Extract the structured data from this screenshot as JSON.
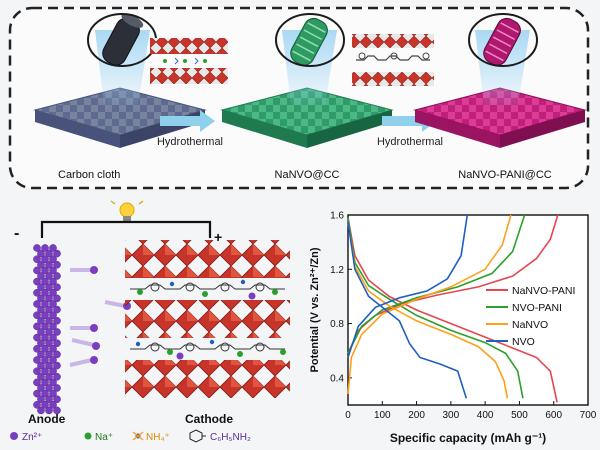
{
  "synthesis": {
    "step1_label": "Hydrothermal",
    "step2_label": "Hydrothermal",
    "stage1_caption": "Carbon cloth",
    "stage2_caption": "NaNVO@CC",
    "stage3_caption": "NaNVO-PANI@CC",
    "colors": {
      "cloth1": "#5e6a8f",
      "cloth2": "#2f9a6a",
      "cloth3": "#c01f7a",
      "octahedra": "#c8342a",
      "arrow": "#8fd0ec"
    }
  },
  "battery": {
    "minus": "-",
    "plus": "+",
    "anode_label": "Anode",
    "cathode_label": "Cathode",
    "legend": [
      {
        "text": "Zn²⁺",
        "icon": "purple-dot-icon"
      },
      {
        "text": "Na⁺",
        "icon": "green-dot-icon"
      },
      {
        "text": "NH₄⁺",
        "icon": "ammonium-icon"
      },
      {
        "text": "C₆H₅NH₂",
        "icon": "aniline-icon"
      }
    ]
  },
  "chart_data": {
    "type": "line",
    "xlabel": "Specific capacity (mAh g⁻¹)",
    "ylabel": "Potential (V vs. Zn²⁺/Zn)",
    "xlim": [
      0,
      700
    ],
    "ylim": [
      0.2,
      1.6
    ],
    "xticks": [
      0,
      100,
      200,
      300,
      400,
      500,
      600,
      700
    ],
    "yticks": [
      0.4,
      0.8,
      1.2,
      1.6
    ],
    "legend_position": "right",
    "series": [
      {
        "name": "NaNVO-PANI",
        "color": "#e8464e",
        "discharge": [
          [
            0,
            1.58
          ],
          [
            20,
            1.3
          ],
          [
            60,
            1.12
          ],
          [
            120,
            1.0
          ],
          [
            200,
            0.9
          ],
          [
            300,
            0.8
          ],
          [
            400,
            0.7
          ],
          [
            480,
            0.62
          ],
          [
            550,
            0.55
          ],
          [
            590,
            0.45
          ],
          [
            610,
            0.22
          ]
        ],
        "charge": [
          [
            0,
            0.58
          ],
          [
            30,
            0.75
          ],
          [
            80,
            0.86
          ],
          [
            160,
            0.95
          ],
          [
            260,
            1.01
          ],
          [
            380,
            1.07
          ],
          [
            480,
            1.15
          ],
          [
            550,
            1.28
          ],
          [
            590,
            1.42
          ],
          [
            612,
            1.6
          ]
        ]
      },
      {
        "name": "NVO-PANI",
        "color": "#2ca02c",
        "discharge": [
          [
            0,
            1.58
          ],
          [
            20,
            1.25
          ],
          [
            60,
            1.08
          ],
          [
            120,
            0.98
          ],
          [
            200,
            0.86
          ],
          [
            300,
            0.75
          ],
          [
            400,
            0.66
          ],
          [
            460,
            0.58
          ],
          [
            495,
            0.45
          ],
          [
            510,
            0.25
          ]
        ],
        "charge": [
          [
            0,
            0.58
          ],
          [
            40,
            0.78
          ],
          [
            100,
            0.9
          ],
          [
            200,
            0.99
          ],
          [
            320,
            1.07
          ],
          [
            420,
            1.17
          ],
          [
            480,
            1.33
          ],
          [
            515,
            1.6
          ]
        ]
      },
      {
        "name": "NaNVO",
        "color": "#ff9f1c",
        "discharge": [
          [
            0,
            1.55
          ],
          [
            20,
            1.22
          ],
          [
            60,
            1.04
          ],
          [
            120,
            0.93
          ],
          [
            200,
            0.82
          ],
          [
            300,
            0.72
          ],
          [
            380,
            0.63
          ],
          [
            430,
            0.52
          ],
          [
            455,
            0.38
          ],
          [
            465,
            0.25
          ]
        ],
        "charge": [
          [
            0,
            0.28
          ],
          [
            10,
            0.55
          ],
          [
            40,
            0.72
          ],
          [
            100,
            0.87
          ],
          [
            200,
            0.98
          ],
          [
            300,
            1.07
          ],
          [
            400,
            1.2
          ],
          [
            450,
            1.38
          ],
          [
            475,
            1.6
          ]
        ]
      },
      {
        "name": "NVO",
        "color": "#1f5fbf",
        "discharge": [
          [
            0,
            1.55
          ],
          [
            20,
            1.2
          ],
          [
            60,
            1.0
          ],
          [
            100,
            0.92
          ],
          [
            150,
            0.82
          ],
          [
            180,
            0.65
          ],
          [
            210,
            0.55
          ],
          [
            270,
            0.5
          ],
          [
            320,
            0.45
          ],
          [
            345,
            0.25
          ]
        ],
        "charge": [
          [
            0,
            0.55
          ],
          [
            30,
            0.78
          ],
          [
            80,
            0.92
          ],
          [
            150,
            0.99
          ],
          [
            230,
            1.04
          ],
          [
            290,
            1.13
          ],
          [
            330,
            1.3
          ],
          [
            348,
            1.6
          ]
        ]
      }
    ]
  }
}
